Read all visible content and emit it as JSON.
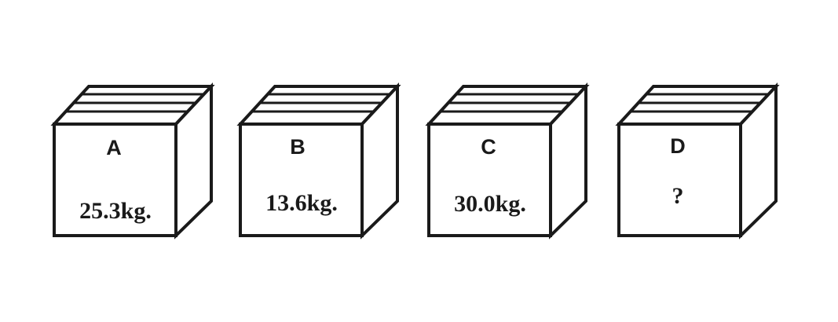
{
  "boxes": [
    {
      "letter": "A",
      "weight": "25.3kg."
    },
    {
      "letter": "B",
      "weight": "13.6kg."
    },
    {
      "letter": "C",
      "weight": "30.0kg."
    },
    {
      "letter": "D",
      "weight": "?"
    }
  ]
}
